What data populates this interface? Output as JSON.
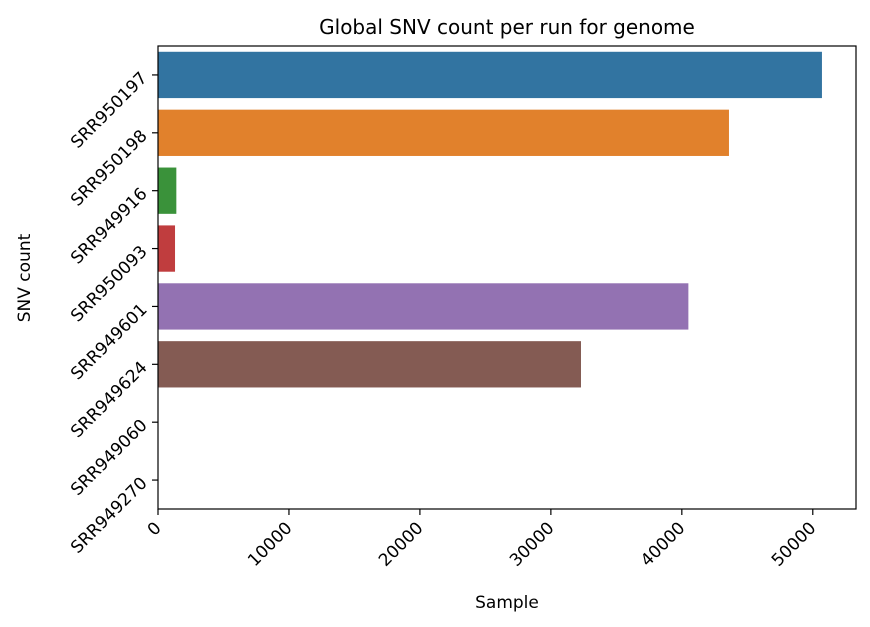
{
  "chart_data": {
    "type": "bar",
    "orientation": "horizontal",
    "title": "Global SNV count per run for genome",
    "xlabel": "Sample",
    "ylabel": "SNV count",
    "xlim": [
      0,
      53300
    ],
    "x_ticks": [
      0,
      10000,
      20000,
      30000,
      40000,
      50000
    ],
    "grid": false,
    "categories": [
      "SRR950197",
      "SRR950198",
      "SRR949916",
      "SRR950093",
      "SRR949601",
      "SRR949624",
      "SRR949060",
      "SRR949270"
    ],
    "values": [
      50700,
      43600,
      1400,
      1300,
      40500,
      32300,
      0,
      0
    ],
    "colors": [
      "#3274a1",
      "#e1812c",
      "#3a923a",
      "#c03d3e",
      "#9372b2",
      "#845b53",
      "#d684bd",
      "#7f7f7f"
    ]
  }
}
